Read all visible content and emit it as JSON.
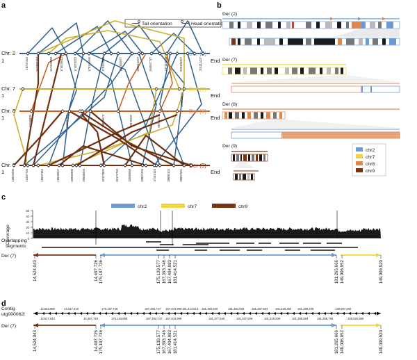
{
  "panels": {
    "a": "a",
    "b": "b",
    "c": "c",
    "d": "d"
  },
  "colors": {
    "chr2": "#6b9bd2",
    "chr7": "#f2d43d",
    "chr8": "#e0874f",
    "chr9": "#7a3414",
    "blue_line": "#2e5f8e",
    "yellow_line": "#c9ac2a",
    "orange_line": "#c85a1c",
    "brown_line": "#6e2e10"
  },
  "panel_a": {
    "legend": {
      "tail": "Tail orientation",
      "head": "Head orientation"
    },
    "rows": [
      {
        "name": "Chr. 2",
        "start": "1",
        "end": "End",
        "der": "Der (2)"
      },
      {
        "name": "Chr. 7",
        "start": "1",
        "end": "End",
        "der": "Der (7)"
      },
      {
        "name": "Chr. 8",
        "start": "1",
        "end": "End",
        "der": "Der (8)"
      },
      {
        "name": "Chr. 9",
        "start": "1",
        "end": "End",
        "der": "Der (9)"
      }
    ],
    "chr2_positions": [
      "18737310",
      "167393747",
      "167404983",
      "174025612",
      "174079222",
      "175116066",
      "175121880",
      "181140577",
      "190212227",
      "194047777",
      "197110025",
      "200106327",
      "201111437"
    ],
    "chr7_positions": [
      "149009920"
    ],
    "chr8_positions": [
      "51148805",
      "56605147",
      "78839573",
      "90570237",
      "95761522"
    ],
    "chr9_positions": [
      "13924056",
      "14497726",
      "15537316",
      "19508947",
      "20956985",
      "28568463",
      "30127800",
      "30174750",
      "32690068",
      "33807403",
      "37315115",
      "38680104",
      "39857621"
    ]
  },
  "panel_b": {
    "labels": [
      "Der (2)",
      "Der (7)",
      "Der (8)",
      "Der (9)"
    ],
    "legend": [
      "chr2",
      "chr7",
      "chr8",
      "chr9"
    ]
  },
  "panel_c": {
    "legend": [
      "chr2",
      "chr7",
      "chr9"
    ],
    "ylabel": "Coverage",
    "yticks": [
      "50",
      "40",
      "30",
      "20",
      "10",
      "0"
    ],
    "overlap_label": [
      "Overlapping",
      "segments"
    ],
    "der_label": "Der (7)",
    "positions": [
      "14,524,043",
      "14,497,726",
      "175,197,736",
      "175,139,577",
      "167,393,746",
      "167,404,983",
      "181,414,521",
      "181,265,666",
      "149,006,952",
      "149,009,920"
    ]
  },
  "panel_d": {
    "contig_label": [
      "Contig",
      "utg000062l"
    ],
    "der_label": "Der (7)",
    "top_ticks": [
      "14,523,680",
      "14,517,410",
      "175,197,736",
      "167,393,747",
      "167,404,999",
      "181,414,513",
      "181,400,630",
      "181,364,026",
      "181,337,503",
      "181,318,294",
      "181,289,206",
      "149,007,262"
    ],
    "bottom_ticks": [
      "14,517,544",
      "14,497,728",
      "175,140,858",
      "167,393,747",
      "167,404,999",
      "181,377,540",
      "181,337,606",
      "181,318,936",
      "181,295,584",
      "181,265,790",
      "149,020,965"
    ],
    "positions": [
      "14,524,043",
      "14,497,726",
      "175,197,736",
      "175,139,577",
      "167,393,746",
      "167,404,983",
      "181,414,521",
      "181,265,666",
      "149,006,952",
      "149,009,920"
    ]
  }
}
